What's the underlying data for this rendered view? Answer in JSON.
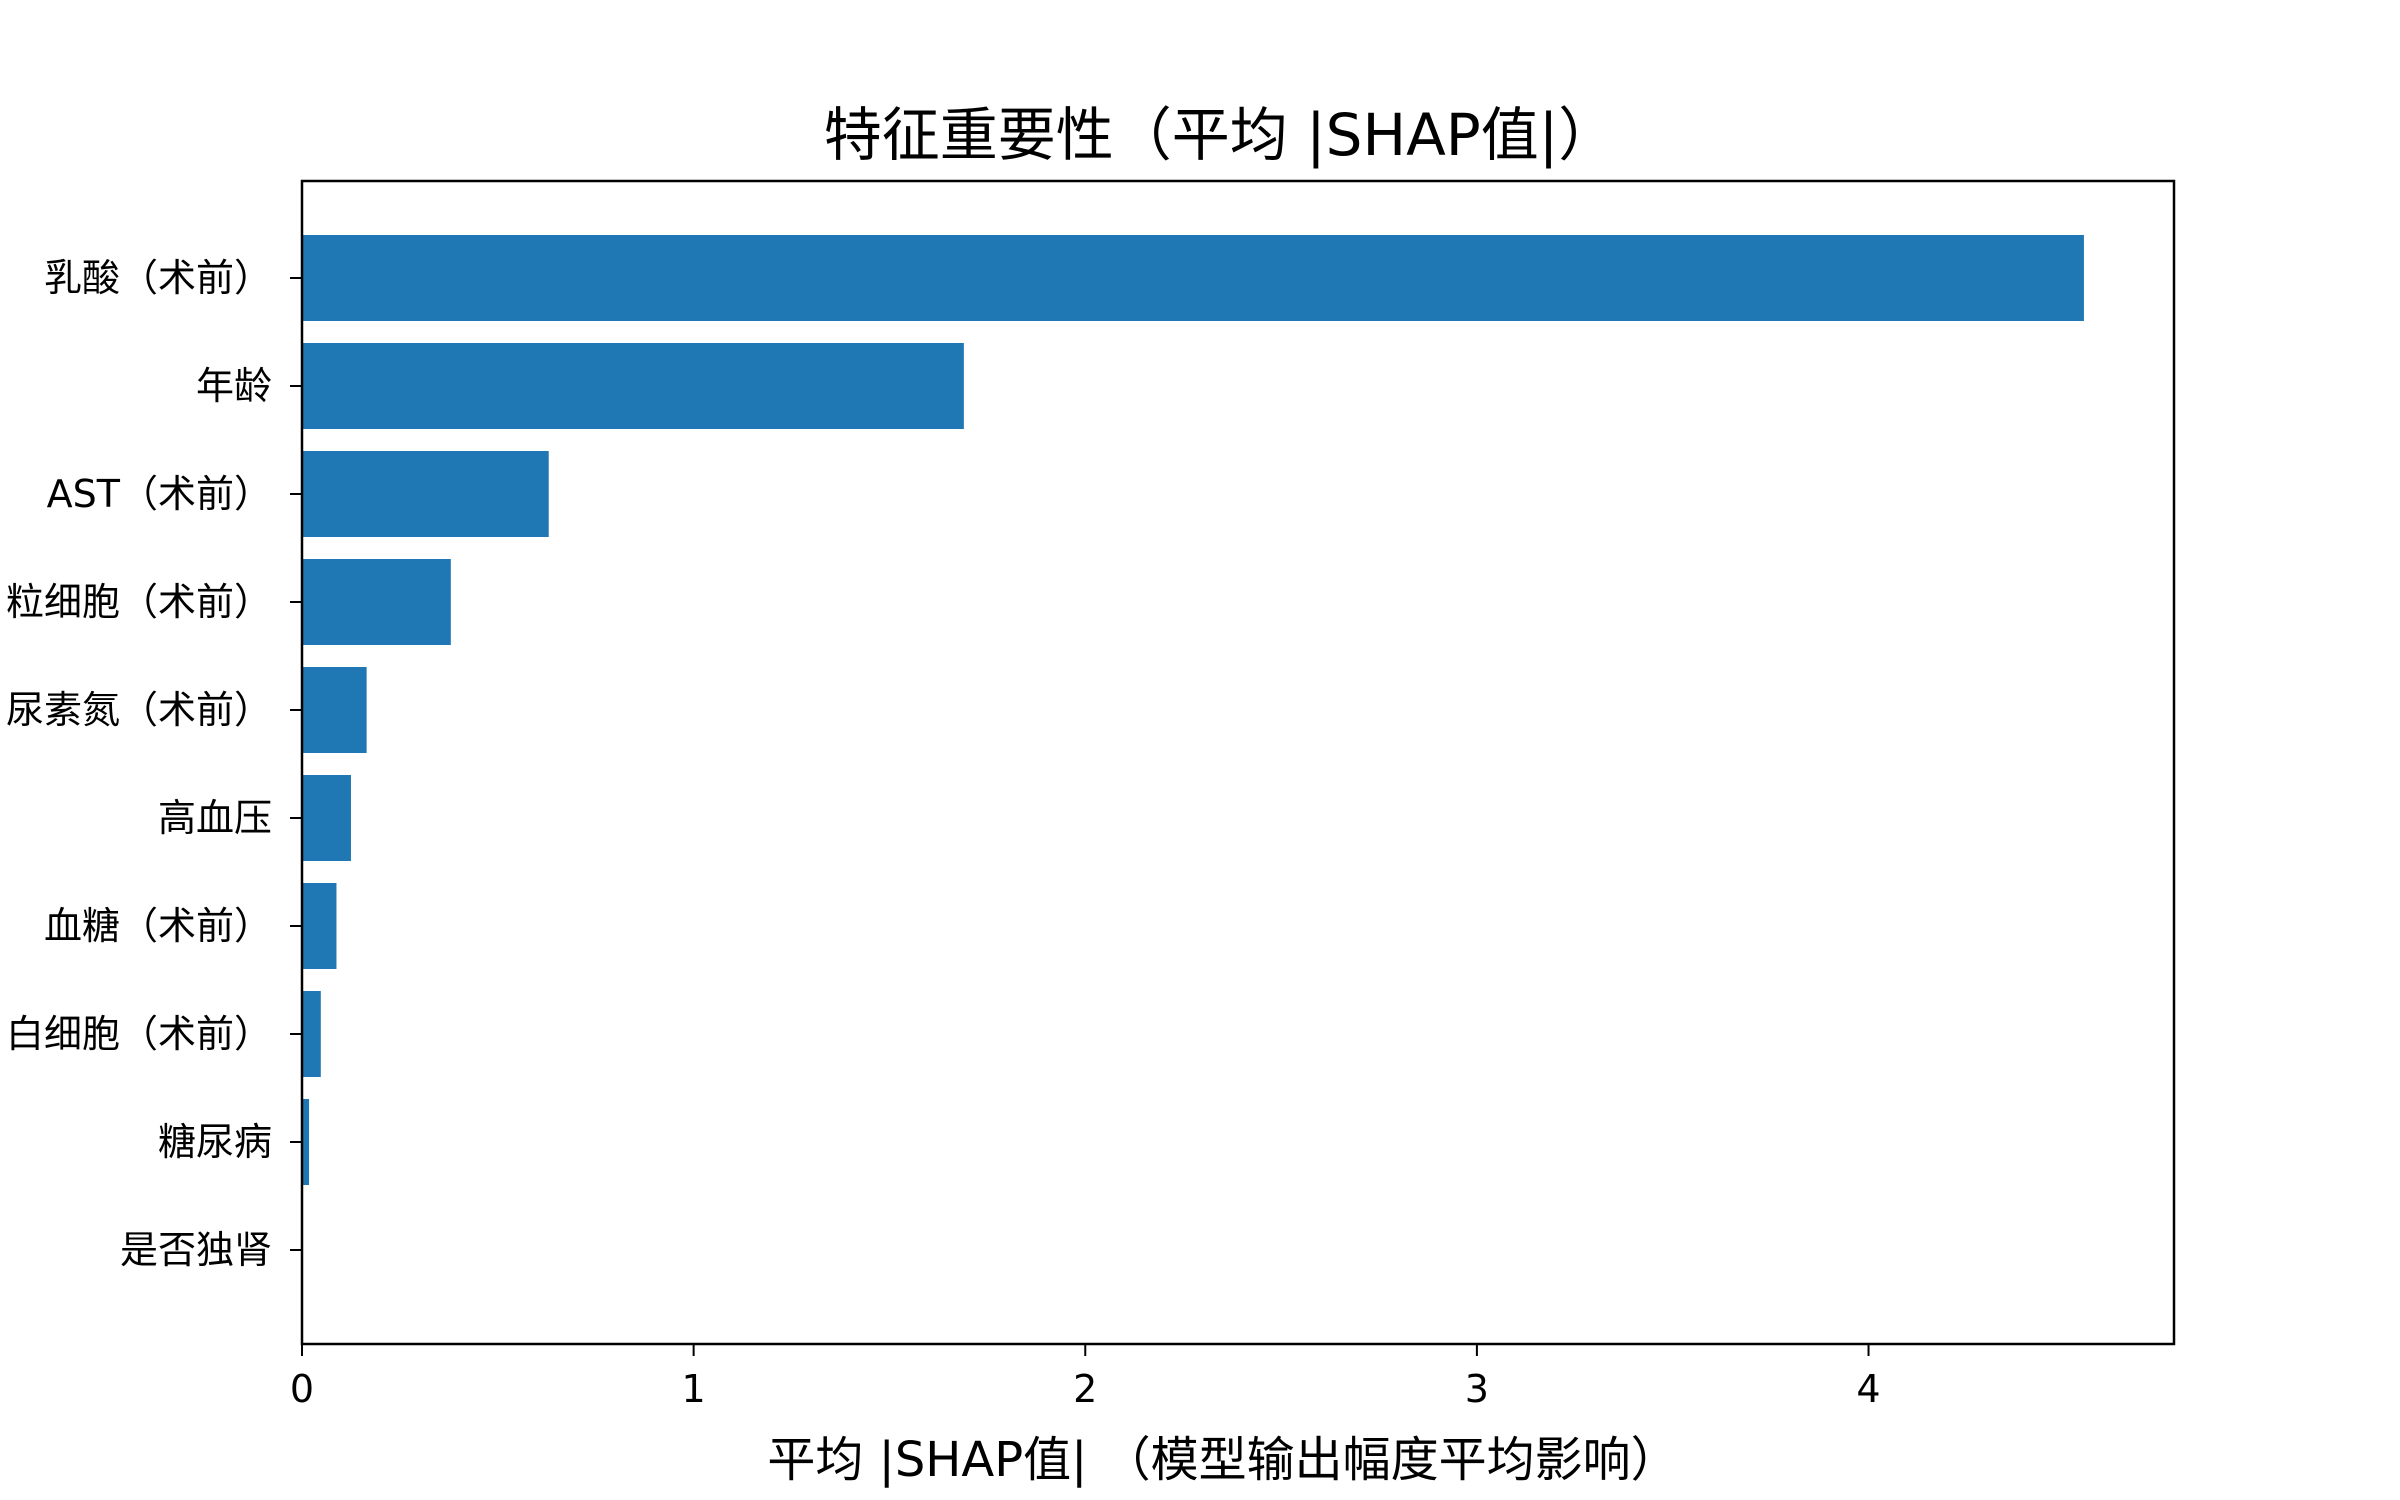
{
  "chart_data": {
    "type": "bar",
    "orientation": "horizontal",
    "title": "特征重要性（平均 |SHAP值|）",
    "xlabel": "平均 |SHAP值| （模型输出幅度平均影响）",
    "ylabel": "",
    "categories": [
      "乳酸（术前）",
      "年龄",
      "AST（术前）",
      "粒细胞（术前）",
      "尿素氮（术前）",
      "高血压",
      "血糖（术前）",
      "白细胞（术前）",
      "糖尿病",
      "是否独肾"
    ],
    "values": [
      4.55,
      1.69,
      0.63,
      0.38,
      0.165,
      0.125,
      0.088,
      0.048,
      0.018,
      0.002
    ],
    "xlim": [
      0,
      4.78
    ],
    "xticks": [
      0,
      1,
      2,
      3,
      4
    ],
    "grid": false,
    "legend": "none",
    "bar_color": "#1f77b4"
  }
}
